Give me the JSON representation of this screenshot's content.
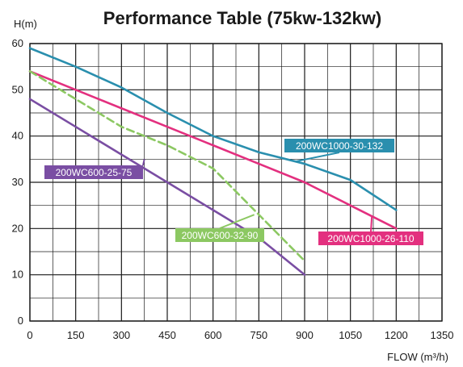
{
  "chart_data": {
    "type": "line",
    "title": "Performance Table (75kw-132kw)",
    "xlabel": "FLOW (m³/h)",
    "ylabel": "H(m)",
    "xlim": [
      0,
      1350
    ],
    "ylim": [
      0,
      60
    ],
    "xticks": [
      "0",
      "150",
      "300",
      "450",
      "600",
      "750",
      "900",
      "1050",
      "1200",
      "1350"
    ],
    "yticks": [
      "0",
      "10",
      "20",
      "30",
      "40",
      "50",
      "60"
    ],
    "grid": true,
    "series": [
      {
        "name": "200WC1000-30-132",
        "color": "#2a8fae",
        "x": [
          0,
          150,
          300,
          450,
          600,
          750,
          900,
          1050,
          1200
        ],
        "y": [
          59,
          55,
          50.5,
          45,
          40,
          36.5,
          34,
          30.5,
          24
        ]
      },
      {
        "name": "200WC1000-26-110",
        "color": "#e3307f",
        "x": [
          0,
          150,
          300,
          450,
          600,
          750,
          900,
          1050,
          1200
        ],
        "y": [
          54,
          50,
          46,
          42,
          38,
          34,
          30,
          25,
          20
        ]
      },
      {
        "name": "200WC600-32-90",
        "color": "#8cc862",
        "x": [
          0,
          150,
          300,
          450,
          600,
          750,
          900
        ],
        "y": [
          54,
          48,
          42,
          38,
          33,
          23,
          13
        ]
      },
      {
        "name": "200WC600-25-75",
        "color": "#7a4ea3",
        "x": [
          0,
          150,
          300,
          450,
          600,
          750,
          900
        ],
        "y": [
          48,
          42,
          36,
          30,
          24,
          18,
          10
        ]
      }
    ]
  }
}
